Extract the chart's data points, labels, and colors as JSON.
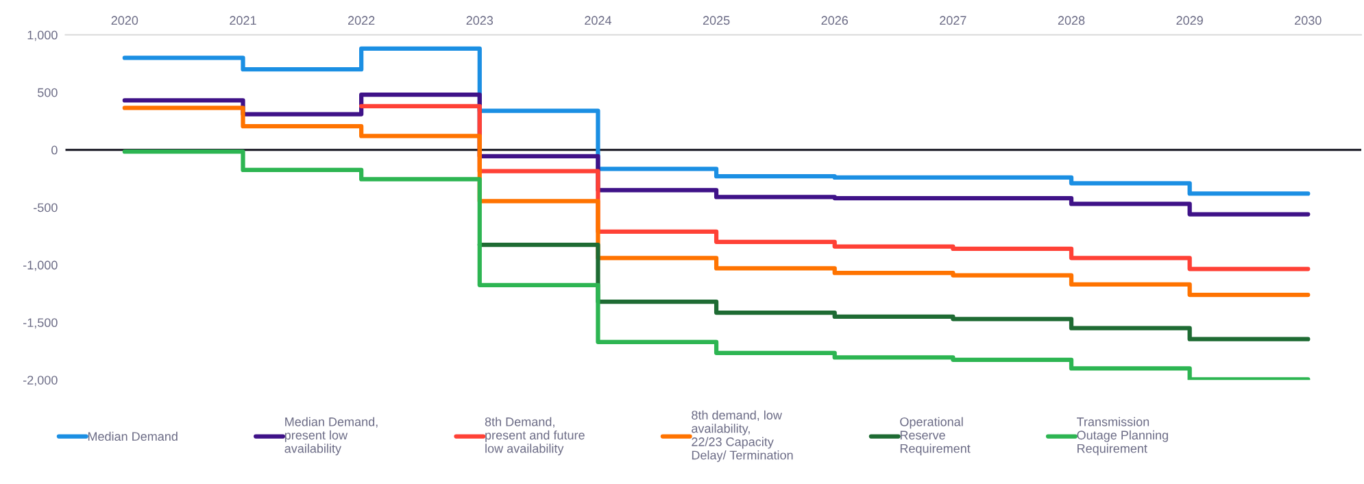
{
  "chart_data": {
    "type": "step",
    "x": [
      2020,
      2021,
      2022,
      2023,
      2024,
      2025,
      2026,
      2027,
      2028,
      2029,
      2030
    ],
    "xlim": [
      2019.5,
      2030.45
    ],
    "xticks": [
      2020,
      2021,
      2022,
      2023,
      2024,
      2025,
      2026,
      2027,
      2028,
      2029,
      2030
    ],
    "ylim": [
      -2000,
      1000
    ],
    "yticks": [
      {
        "value": -2000,
        "label": "-2,000"
      },
      {
        "value": -1500,
        "label": "-1,500"
      },
      {
        "value": -1000,
        "label": "-1,000"
      },
      {
        "value": -500,
        "label": "-500"
      },
      {
        "value": 0,
        "label": "0"
      },
      {
        "value": 500,
        "label": "500"
      },
      {
        "value": 1000,
        "label": "1,000"
      }
    ],
    "grid": false,
    "legend": "bottom",
    "line_style": "solid",
    "marker": "none",
    "ref_lines": [
      {
        "axis": "y",
        "value": 0,
        "color": "#252530"
      }
    ],
    "series": [
      {
        "name": "Median Demand",
        "color": "#1b8fe3",
        "values": [
          800,
          700,
          880,
          340,
          -165,
          -230,
          -240,
          -240,
          -290,
          -380,
          -380
        ]
      },
      {
        "name": "Median Demand, present low availability",
        "color": "#3f1288",
        "values": [
          430,
          310,
          480,
          -55,
          -350,
          -410,
          -420,
          -420,
          -470,
          -560,
          -560
        ]
      },
      {
        "name": "8th Demand, present and future low availability",
        "color": "#ff4136",
        "values": [
          null,
          null,
          380,
          -185,
          -710,
          -800,
          -840,
          -860,
          -940,
          -1035,
          -1035
        ]
      },
      {
        "name": "8th demand, low availability, 22/23 Capacity Delay/ Termination",
        "color": "#ff7300",
        "values": [
          365,
          205,
          120,
          -445,
          -940,
          -1030,
          -1070,
          -1090,
          -1170,
          -1260,
          -1260
        ]
      },
      {
        "name": "Operational Reserve Requirement",
        "color": "#1e6b33",
        "values": [
          null,
          null,
          null,
          -825,
          -1320,
          -1415,
          -1450,
          -1470,
          -1550,
          -1645,
          -1645
        ]
      },
      {
        "name": "Transmission Outage Planning Requirement",
        "color": "#2db552",
        "values": [
          -15,
          -175,
          -255,
          -1175,
          -1670,
          -1765,
          -1805,
          -1825,
          -1900,
          -1995,
          -1995
        ]
      }
    ]
  }
}
